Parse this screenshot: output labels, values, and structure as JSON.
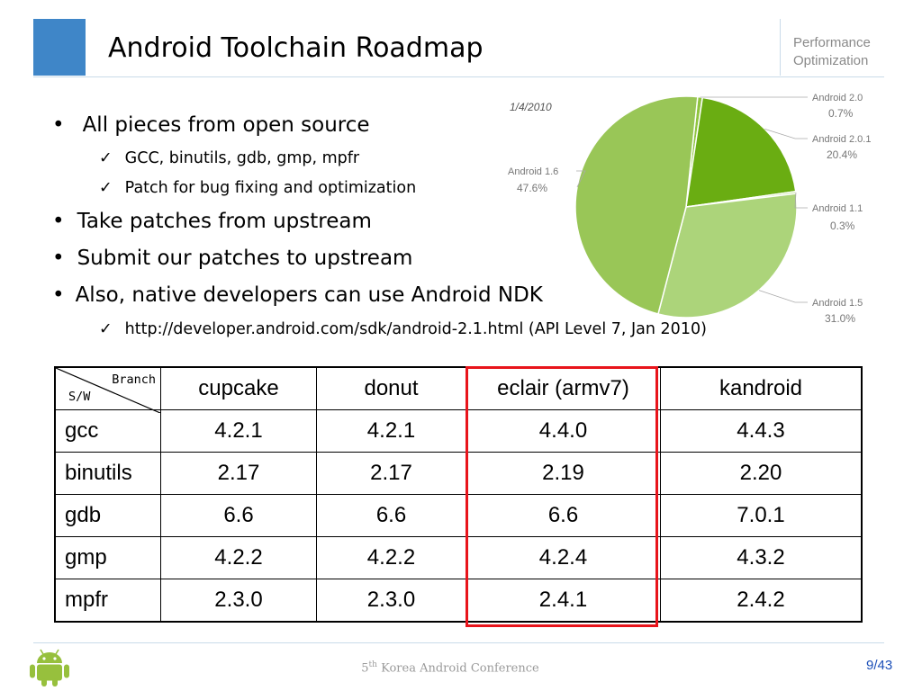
{
  "header": {
    "title": "Android Toolchain Roadmap",
    "section_line1": "Performance",
    "section_line2": "Optimization"
  },
  "bullets": [
    {
      "level": 1,
      "marker": "•",
      "text": "All pieces from open source"
    },
    {
      "level": 2,
      "marker": "✓",
      "text": "GCC, binutils, gdb, gmp, mpfr"
    },
    {
      "level": 2,
      "marker": "✓",
      "text": "Patch for bug fixing and optimization"
    },
    {
      "level": 1,
      "marker": "•",
      "text": "Take patches from upstream"
    },
    {
      "level": 1,
      "marker": "•",
      "text": "Submit our patches to upstream"
    },
    {
      "level": 1,
      "marker": "•",
      "text": "Also, native developers can use Android NDK"
    },
    {
      "level": 2,
      "marker": "✓",
      "text": "http://developer.android.com/sdk/android-2.1.html (API Level 7, Jan 2010)"
    }
  ],
  "pie": {
    "date": "1/4/2010",
    "slices": [
      {
        "name": "Android 2.0",
        "value": "0.7%",
        "pct": 0.7,
        "color": "#8fc43f"
      },
      {
        "name": "Android 2.0.1",
        "value": "20.4%",
        "pct": 20.4,
        "color": "#6aad12"
      },
      {
        "name": "Android 1.1",
        "value": "0.3%",
        "pct": 0.3,
        "color": "#b8dc8a"
      },
      {
        "name": "Android 1.5",
        "value": "31.0%",
        "pct": 31.0,
        "color": "#acd47a"
      },
      {
        "name": "Android 1.6",
        "value": "47.6%",
        "pct": 47.6,
        "color": "#99c657"
      }
    ]
  },
  "table": {
    "corner_branch": "Branch",
    "corner_sw": "S/W",
    "columns": [
      "cupcake",
      "donut",
      "eclair (armv7)",
      "kandroid"
    ],
    "rows": [
      {
        "name": "gcc",
        "values": [
          "4.2.1",
          "4.2.1",
          "4.4.0",
          "4.4.3"
        ]
      },
      {
        "name": "binutils",
        "values": [
          "2.17",
          "2.17",
          "2.19",
          "2.20"
        ]
      },
      {
        "name": "gdb",
        "values": [
          "6.6",
          "6.6",
          "6.6",
          "7.0.1"
        ]
      },
      {
        "name": "gmp",
        "values": [
          "4.2.2",
          "4.2.2",
          "4.2.4",
          "4.3.2"
        ]
      },
      {
        "name": "mpfr",
        "values": [
          "2.3.0",
          "2.3.0",
          "2.4.1",
          "2.4.2"
        ]
      }
    ],
    "highlight_color": "#e8141b"
  },
  "footer": {
    "conference_num": "5",
    "conference_sup": "th",
    "conference_text": " Korea Android Conference",
    "page_current": "9",
    "page_total": "/43"
  }
}
